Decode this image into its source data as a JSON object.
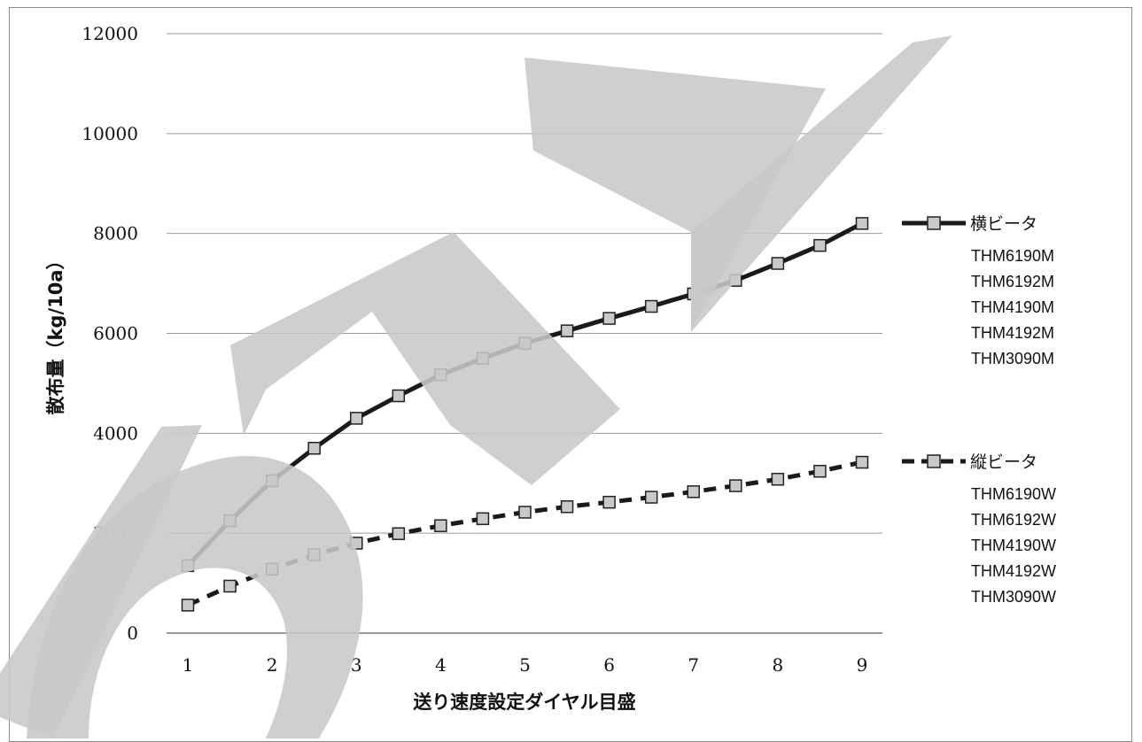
{
  "chart_data": {
    "type": "line",
    "title": "",
    "xlabel": "送り速度設定ダイヤル目盛",
    "ylabel": "散布量（kg/10a）",
    "xlim": [
      0.5,
      9.2
    ],
    "ylim": [
      0,
      12000
    ],
    "x_ticks": [
      1,
      2,
      3,
      4,
      5,
      6,
      7,
      8,
      9
    ],
    "y_ticks": [
      0,
      2000,
      4000,
      6000,
      8000,
      10000,
      12000
    ],
    "grid": "horizontal",
    "legend_position": "right",
    "x": [
      1,
      1.5,
      2,
      2.5,
      3,
      3.5,
      4,
      4.5,
      5,
      5.5,
      6,
      6.5,
      7,
      7.5,
      8,
      8.5,
      9
    ],
    "series": [
      {
        "name": "横ビータ",
        "style": "solid",
        "color": "#1a1a1a",
        "models": [
          "THM6190M",
          "THM6192M",
          "THM4190M",
          "THM4192M",
          "THM3090M"
        ],
        "values": [
          1350,
          2250,
          3050,
          3700,
          4300,
          4750,
          5170,
          5500,
          5800,
          6050,
          6300,
          6540,
          6790,
          7060,
          7400,
          7760,
          8200
        ]
      },
      {
        "name": "縦ビータ",
        "style": "dashed",
        "color": "#1a1a1a",
        "models": [
          "THM6190W",
          "THM6192W",
          "THM4190W",
          "THM4192W",
          "THM3090W"
        ],
        "values": [
          560,
          940,
          1280,
          1570,
          1800,
          1990,
          2150,
          2290,
          2420,
          2530,
          2620,
          2720,
          2830,
          2950,
          3080,
          3240,
          3420
        ]
      }
    ],
    "marker_fill": "#c9c9c9",
    "marker_stroke": "#222222"
  },
  "watermark": {
    "color": "#c8c8c8",
    "text": "SA"
  }
}
